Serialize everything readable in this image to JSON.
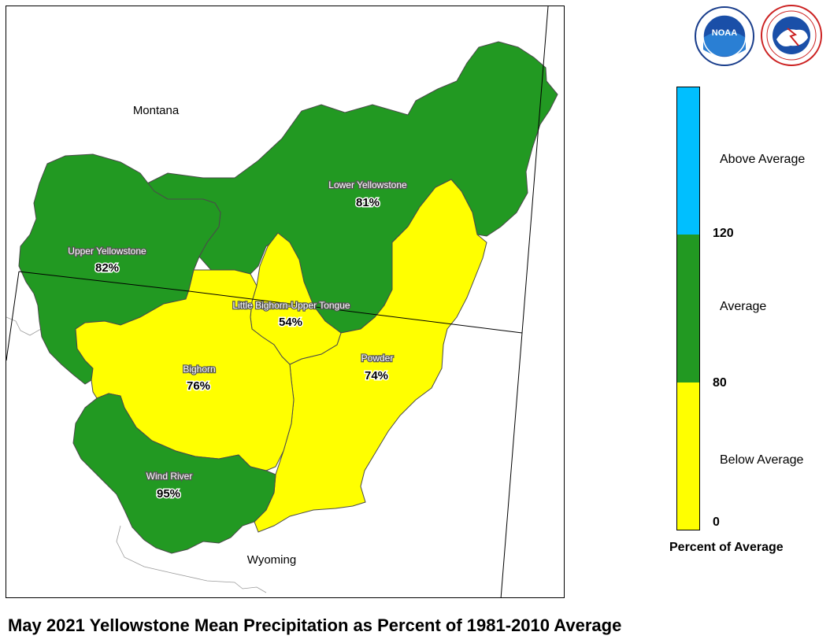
{
  "title": "May 2021 Yellowstone Mean Precipitation as Percent of 1981-2010 Average",
  "states": {
    "montana": "Montana",
    "wyoming": "Wyoming"
  },
  "basins": [
    {
      "id": "upper-yellowstone",
      "name": "Upper Yellowstone",
      "percent": 82,
      "percent_label": "82%",
      "category": "Average"
    },
    {
      "id": "lower-yellowstone",
      "name": "Lower Yellowstone",
      "percent": 81,
      "percent_label": "81%",
      "category": "Average"
    },
    {
      "id": "little-bighorn-upper-tongue",
      "name": "Little Bighorn-Upper Tongue",
      "percent": 54,
      "percent_label": "54%",
      "category": "Below Average"
    },
    {
      "id": "bighorn",
      "name": "Bighorn",
      "percent": 76,
      "percent_label": "76%",
      "category": "Below Average"
    },
    {
      "id": "powder",
      "name": "Powder",
      "percent": 74,
      "percent_label": "74%",
      "category": "Below Average"
    },
    {
      "id": "wind-river",
      "name": "Wind River",
      "percent": 95,
      "percent_label": "95%",
      "category": "Average"
    }
  ],
  "legend": {
    "title": "Percent of Average",
    "categories": [
      {
        "label": "Above Average",
        "color": "#00bfff",
        "range": [
          120,
          null
        ]
      },
      {
        "label": "Average",
        "color": "#229922",
        "range": [
          80,
          120
        ]
      },
      {
        "label": "Below Average",
        "color": "#ffff00",
        "range": [
          0,
          80
        ]
      }
    ],
    "ticks": [
      "120",
      "80",
      "0"
    ]
  },
  "colors": {
    "average": "#229922",
    "below_average": "#ffff00",
    "above_average": "#00bfff"
  },
  "logos": [
    {
      "name": "noaa-logo",
      "text": "NOAA"
    },
    {
      "name": "nws-logo",
      "text": "NATIONAL WEATHER SERVICE"
    }
  ]
}
